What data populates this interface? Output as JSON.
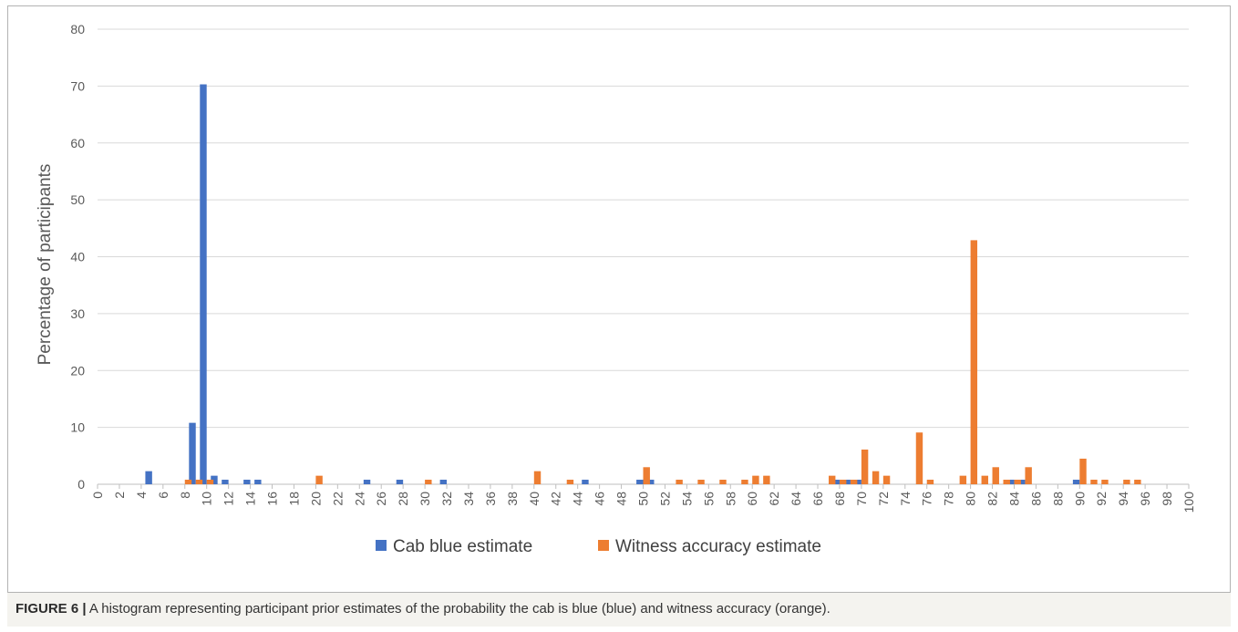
{
  "caption": {
    "label": "FIGURE 6 |",
    "text": "A histogram representing participant prior estimates of the probability the cab is blue (blue) and witness accuracy (orange)."
  },
  "colors": {
    "blue": "#4472c4",
    "orange": "#ed7d31",
    "grid": "#d9d9d9",
    "axis": "#bfbfbf"
  },
  "chart_data": {
    "type": "bar",
    "title": "",
    "xlabel": "",
    "ylabel": "Percentage of participants",
    "ylim": [
      0,
      80
    ],
    "yticks": [
      0,
      10,
      20,
      30,
      40,
      50,
      60,
      70,
      80
    ],
    "xlim": [
      0,
      100
    ],
    "xtick_step": 2,
    "grid": true,
    "legend_position": "bottom",
    "series": [
      {
        "name": "Cab blue estimate",
        "color": "#4472c4",
        "points": [
          [
            5,
            2.3
          ],
          [
            9,
            10.8
          ],
          [
            10,
            70.3
          ],
          [
            11,
            1.5
          ],
          [
            12,
            0.8
          ],
          [
            14,
            0.8
          ],
          [
            15,
            0.8
          ],
          [
            25,
            0.8
          ],
          [
            28,
            0.8
          ],
          [
            32,
            0.8
          ],
          [
            45,
            0.8
          ],
          [
            50,
            0.8
          ],
          [
            51,
            0.8
          ],
          [
            68,
            0.8
          ],
          [
            69,
            0.8
          ],
          [
            70,
            0.8
          ],
          [
            84,
            0.8
          ],
          [
            85,
            0.8
          ],
          [
            90,
            0.8
          ]
        ]
      },
      {
        "name": "Witness accuracy estimate",
        "color": "#ed7d31",
        "points": [
          [
            8,
            0.8
          ],
          [
            9,
            0.8
          ],
          [
            10,
            0.8
          ],
          [
            20,
            1.5
          ],
          [
            30,
            0.8
          ],
          [
            40,
            2.3
          ],
          [
            43,
            0.8
          ],
          [
            50,
            3.0
          ],
          [
            53,
            0.8
          ],
          [
            55,
            0.8
          ],
          [
            57,
            0.8
          ],
          [
            59,
            0.8
          ],
          [
            60,
            1.5
          ],
          [
            61,
            1.5
          ],
          [
            67,
            1.5
          ],
          [
            68,
            0.8
          ],
          [
            69,
            0.8
          ],
          [
            70,
            6.1
          ],
          [
            71,
            2.3
          ],
          [
            72,
            1.5
          ],
          [
            75,
            9.1
          ],
          [
            76,
            0.8
          ],
          [
            79,
            1.5
          ],
          [
            80,
            42.9
          ],
          [
            81,
            1.5
          ],
          [
            82,
            3.0
          ],
          [
            83,
            0.8
          ],
          [
            84,
            0.8
          ],
          [
            85,
            3.0
          ],
          [
            90,
            4.5
          ],
          [
            91,
            0.8
          ],
          [
            92,
            0.8
          ],
          [
            94,
            0.8
          ],
          [
            95,
            0.8
          ]
        ]
      }
    ]
  }
}
